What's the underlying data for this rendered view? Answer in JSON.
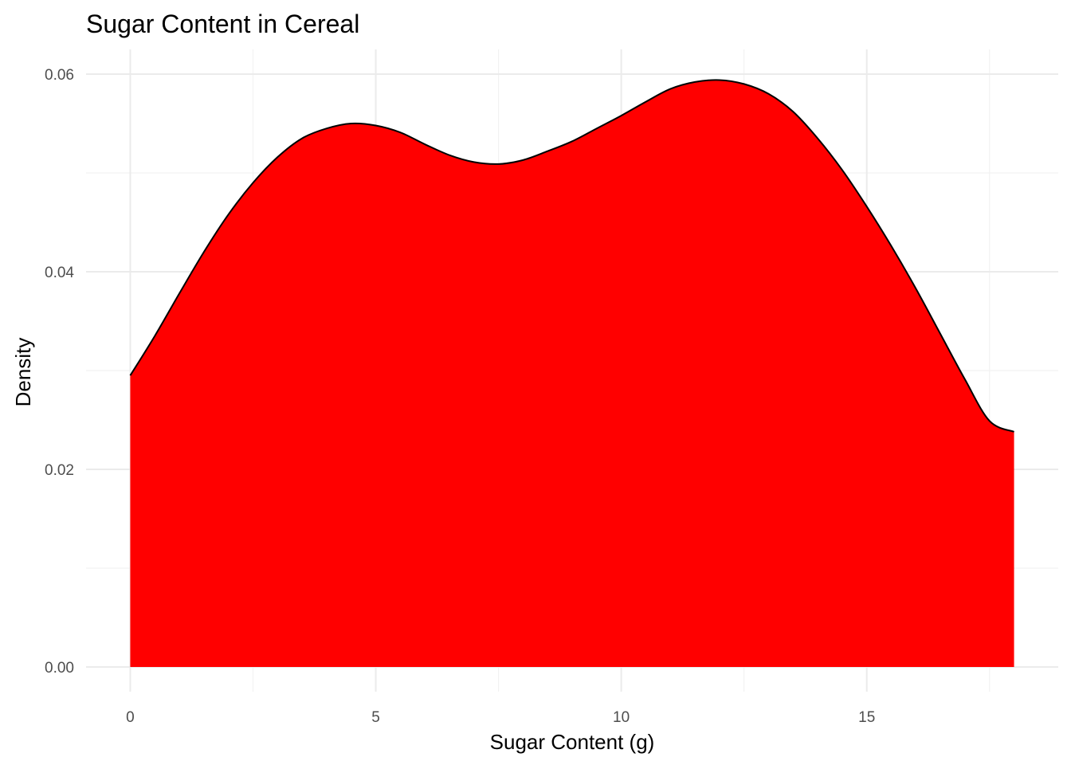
{
  "chart_data": {
    "type": "area",
    "title": "Sugar Content in Cereal",
    "xlabel": "Sugar Content (g)",
    "ylabel": "Density",
    "xlim": [
      -0.9,
      18.9
    ],
    "ylim": [
      -0.0025,
      0.0625
    ],
    "x_ticks": [
      0,
      5,
      10,
      15
    ],
    "x_tick_labels": [
      "0",
      "5",
      "10",
      "15"
    ],
    "y_ticks": [
      0.0,
      0.02,
      0.04,
      0.06
    ],
    "y_tick_labels": [
      "0.00",
      "0.02",
      "0.04",
      "0.06"
    ],
    "x_minor_ticks": [
      2.5,
      7.5,
      12.5,
      17.5
    ],
    "y_minor_ticks": [
      0.01,
      0.03,
      0.05
    ],
    "grid": true,
    "legend": "none",
    "fill_color": "#ff0000",
    "line_color": "#000000",
    "series": [
      {
        "x": [
          0,
          0.5,
          1,
          1.5,
          2,
          2.5,
          3,
          3.5,
          4,
          4.5,
          5,
          5.5,
          6,
          6.5,
          7,
          7.5,
          8,
          8.5,
          9,
          9.5,
          10,
          10.5,
          11,
          11.5,
          12,
          12.5,
          13,
          13.5,
          14,
          14.5,
          15,
          15.5,
          16,
          16.5,
          17,
          17.5,
          18
        ],
        "y": [
          0.0295,
          0.0335,
          0.0378,
          0.042,
          0.0458,
          0.049,
          0.0516,
          0.0535,
          0.0545,
          0.055,
          0.0548,
          0.0541,
          0.0529,
          0.0518,
          0.0511,
          0.0509,
          0.0513,
          0.0522,
          0.0532,
          0.0545,
          0.0558,
          0.0572,
          0.0585,
          0.0592,
          0.0594,
          0.059,
          0.058,
          0.0562,
          0.0535,
          0.0503,
          0.0466,
          0.0426,
          0.0383,
          0.0337,
          0.0291,
          0.0249,
          0.0238
        ]
      }
    ]
  }
}
